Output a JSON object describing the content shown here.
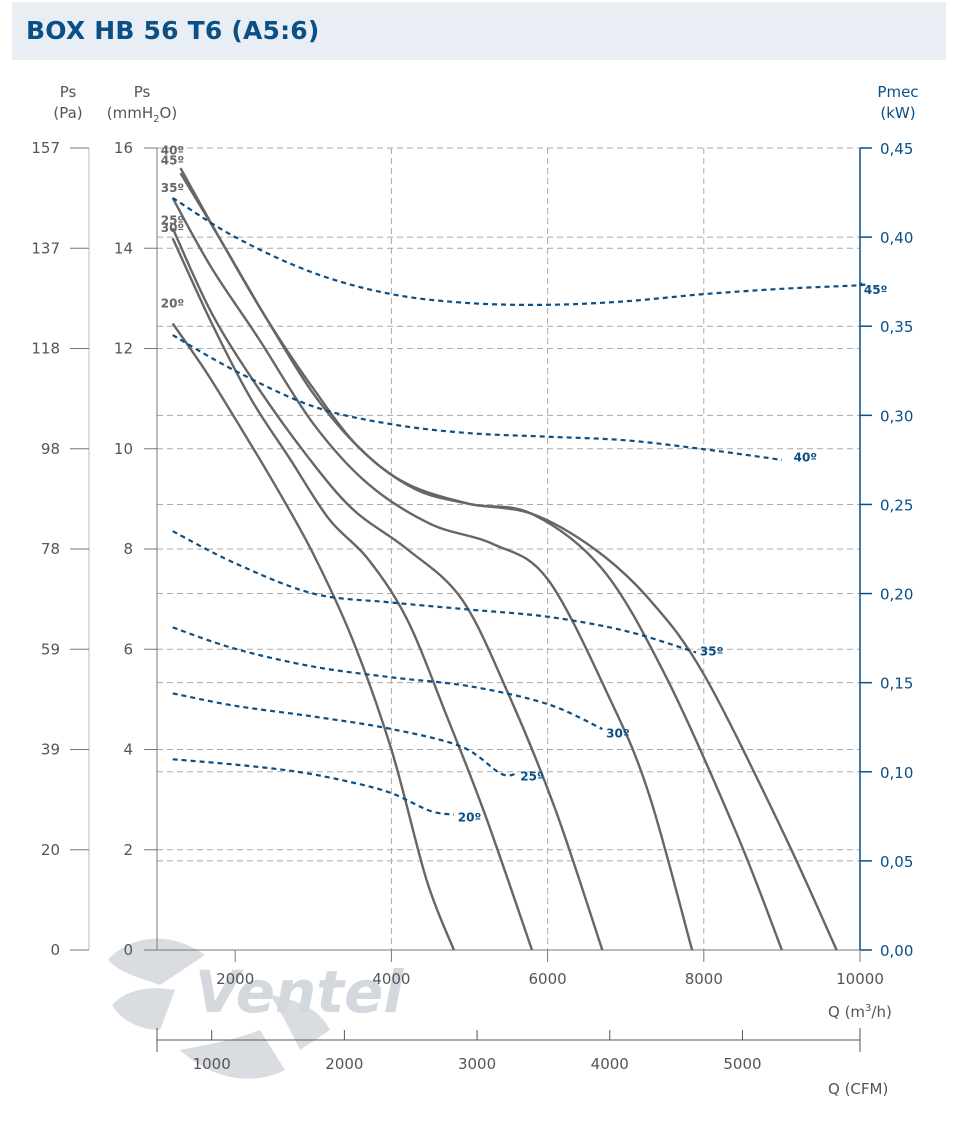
{
  "header": {
    "title": "BOX HB 56 T6 (A5:6)"
  },
  "colors": {
    "ps_curve": "#666666",
    "pmec_curve": "#0a4f86",
    "grid": "#aaaaaa",
    "title_bar": "#e8eef4"
  },
  "watermark": "Ventel",
  "chart_data": {
    "type": "line",
    "title": "BOX HB 56 T6 (A5:6)",
    "axes": {
      "x_primary": {
        "label": "Q (m3/h)",
        "range": [
          0,
          10000
        ],
        "ticks": [
          "2000",
          "4000",
          "6000",
          "8000",
          "10000"
        ]
      },
      "x_secondary": {
        "label": "Q (CFM)",
        "range": [
          0,
          5885
        ],
        "ticks": [
          "1000",
          "2000",
          "3000",
          "4000",
          "5000"
        ]
      },
      "y_left_pa": {
        "label_main": "Ps",
        "label_unit": "(Pa)",
        "ticks": [
          "0",
          "20",
          "39",
          "59",
          "78",
          "98",
          "118",
          "137",
          "157"
        ]
      },
      "y_left_mmh2o": {
        "label_main": "Ps",
        "label_unit": "(mmH2O)",
        "range": [
          0,
          16
        ],
        "ticks": [
          "0",
          "2",
          "4",
          "6",
          "8",
          "10",
          "12",
          "14",
          "16"
        ]
      },
      "y_right_kw": {
        "label_main": "Pmec",
        "label_unit": "(kW)",
        "range": [
          0,
          0.45
        ],
        "ticks": [
          "0,00",
          "0,05",
          "0,10",
          "0,15",
          "0,20",
          "0,25",
          "0,30",
          "0,35",
          "0,40",
          "0,45"
        ]
      }
    },
    "grid": true,
    "ps_series": [
      {
        "name": "20º",
        "unit": "mmH2O",
        "points": [
          [
            1200,
            12.5
          ],
          [
            1600,
            11.6
          ],
          [
            2000,
            10.6
          ],
          [
            2500,
            9.3
          ],
          [
            3000,
            7.9
          ],
          [
            3500,
            6.2
          ],
          [
            4000,
            4.0
          ],
          [
            4450,
            1.4
          ],
          [
            4800,
            0
          ]
        ]
      },
      {
        "name": "25º",
        "unit": "mmH2O",
        "points": [
          [
            1200,
            14.2
          ],
          [
            1700,
            12.5
          ],
          [
            2200,
            11.0
          ],
          [
            2700,
            9.8
          ],
          [
            3200,
            8.6
          ],
          [
            3700,
            7.8
          ],
          [
            4200,
            6.6
          ],
          [
            4700,
            4.7
          ],
          [
            5200,
            2.7
          ],
          [
            5800,
            0
          ]
        ]
      },
      {
        "name": "30º",
        "unit": "mmH2O",
        "points": [
          [
            1200,
            14.4
          ],
          [
            1700,
            12.7
          ],
          [
            2300,
            11.2
          ],
          [
            2900,
            9.9
          ],
          [
            3500,
            8.8
          ],
          [
            4200,
            8.0
          ],
          [
            4900,
            7.0
          ],
          [
            5500,
            5.1
          ],
          [
            6100,
            2.8
          ],
          [
            6700,
            0
          ]
        ]
      },
      {
        "name": "35º",
        "unit": "mmH2O",
        "points": [
          [
            1200,
            15.0
          ],
          [
            1700,
            13.6
          ],
          [
            2300,
            12.2
          ],
          [
            3000,
            10.5
          ],
          [
            3700,
            9.3
          ],
          [
            4500,
            8.5
          ],
          [
            5300,
            8.1
          ],
          [
            6000,
            7.4
          ],
          [
            6800,
            5.0
          ],
          [
            7300,
            3.1
          ],
          [
            7850,
            0
          ]
        ]
      },
      {
        "name": "40º",
        "unit": "mmH2O",
        "points": [
          [
            1300,
            15.5
          ],
          [
            1800,
            14.2
          ],
          [
            2400,
            12.6
          ],
          [
            3000,
            11.1
          ],
          [
            3600,
            10.0
          ],
          [
            4200,
            9.3
          ],
          [
            5000,
            8.9
          ],
          [
            5800,
            8.7
          ],
          [
            6700,
            7.6
          ],
          [
            7500,
            5.5
          ],
          [
            8400,
            2.4
          ],
          [
            9000,
            0
          ]
        ]
      },
      {
        "name": "45º",
        "unit": "mmH2O",
        "points": [
          [
            1300,
            15.6
          ],
          [
            1800,
            14.2
          ],
          [
            2400,
            12.6
          ],
          [
            3000,
            11.2
          ],
          [
            3600,
            10.0
          ],
          [
            4300,
            9.2
          ],
          [
            5000,
            8.9
          ],
          [
            5800,
            8.7
          ],
          [
            6600,
            8.0
          ],
          [
            7300,
            7.0
          ],
          [
            8000,
            5.5
          ],
          [
            9000,
            2.4
          ],
          [
            9700,
            0
          ]
        ]
      }
    ],
    "pmec_series": [
      {
        "name": "20º",
        "unit": "kW",
        "points": [
          [
            1200,
            0.107
          ],
          [
            2000,
            0.104
          ],
          [
            2800,
            0.1
          ],
          [
            3500,
            0.094
          ],
          [
            4000,
            0.088
          ],
          [
            4500,
            0.078
          ],
          [
            4800,
            0.076
          ]
        ]
      },
      {
        "name": "25º",
        "unit": "kW",
        "points": [
          [
            1200,
            0.144
          ],
          [
            2000,
            0.137
          ],
          [
            3000,
            0.131
          ],
          [
            4000,
            0.124
          ],
          [
            4900,
            0.114
          ],
          [
            5400,
            0.099
          ],
          [
            5600,
            0.099
          ]
        ]
      },
      {
        "name": "30º",
        "unit": "kW",
        "points": [
          [
            1200,
            0.181
          ],
          [
            2000,
            0.169
          ],
          [
            3000,
            0.159
          ],
          [
            4000,
            0.153
          ],
          [
            5000,
            0.148
          ],
          [
            6000,
            0.138
          ],
          [
            6700,
            0.124
          ]
        ]
      },
      {
        "name": "35º",
        "unit": "kW",
        "points": [
          [
            1200,
            0.235
          ],
          [
            2000,
            0.217
          ],
          [
            3000,
            0.2
          ],
          [
            4000,
            0.195
          ],
          [
            5000,
            0.191
          ],
          [
            6000,
            0.187
          ],
          [
            7000,
            0.179
          ],
          [
            7900,
            0.167
          ]
        ]
      },
      {
        "name": "40º",
        "unit": "kW",
        "points": [
          [
            1200,
            0.345
          ],
          [
            2000,
            0.325
          ],
          [
            3000,
            0.305
          ],
          [
            4000,
            0.295
          ],
          [
            5000,
            0.29
          ],
          [
            6000,
            0.288
          ],
          [
            7000,
            0.286
          ],
          [
            8000,
            0.281
          ],
          [
            9000,
            0.275
          ]
        ]
      },
      {
        "name": "45º",
        "unit": "kW",
        "points": [
          [
            1200,
            0.422
          ],
          [
            2000,
            0.4
          ],
          [
            3000,
            0.38
          ],
          [
            4000,
            0.368
          ],
          [
            5000,
            0.363
          ],
          [
            6000,
            0.362
          ],
          [
            7000,
            0.364
          ],
          [
            8000,
            0.368
          ],
          [
            9000,
            0.371
          ],
          [
            10000,
            0.373
          ],
          [
            10000,
            0.374
          ]
        ]
      }
    ],
    "labels_ps": [
      {
        "text": "20º",
        "x": 1200,
        "y": 12.9
      },
      {
        "text": "25º",
        "x": 1200,
        "y": 14.55
      },
      {
        "text": "30º",
        "x": 1200,
        "y": 14.4
      },
      {
        "text": "35º",
        "x": 1200,
        "y": 15.2
      },
      {
        "text": "40º",
        "x": 1200,
        "y": 15.95
      },
      {
        "text": "45º",
        "x": 1200,
        "y": 15.75
      }
    ],
    "labels_pmec": [
      {
        "text": "20º",
        "x": 4850,
        "y": 0.075
      },
      {
        "text": "25º",
        "x": 5650,
        "y": 0.098
      },
      {
        "text": "30º",
        "x": 6750,
        "y": 0.122
      },
      {
        "text": "35º",
        "x": 7950,
        "y": 0.168
      },
      {
        "text": "40º",
        "x": 9150,
        "y": 0.277
      },
      {
        "text": "45º",
        "x": 10050,
        "y": 0.371
      }
    ]
  }
}
